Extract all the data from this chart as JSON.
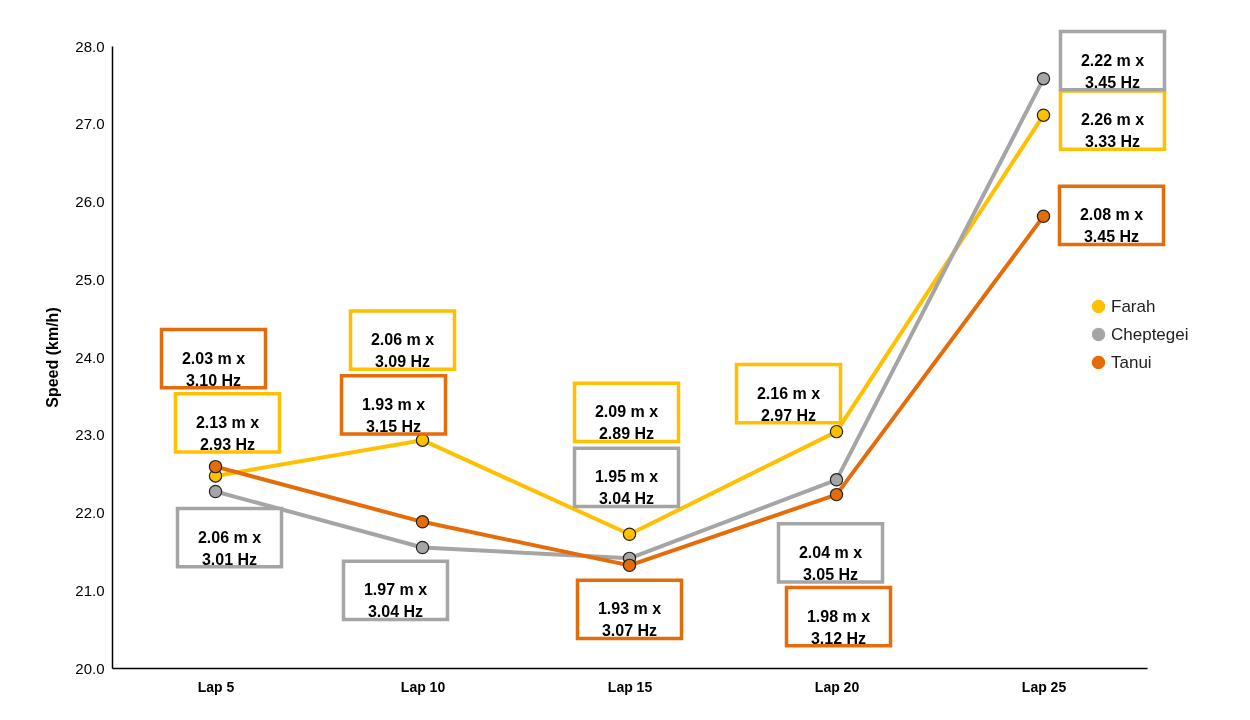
{
  "chart_data": {
    "type": "line",
    "ylabel": "Speed (km/h)",
    "categories": [
      "Lap 5",
      "Lap 10",
      "Lap 15",
      "Lap 20",
      "Lap 25"
    ],
    "ylim": [
      20,
      28
    ],
    "yticks": [
      {
        "value": 20,
        "label": "20.0"
      },
      {
        "value": 21,
        "label": "21.0"
      },
      {
        "value": 22,
        "label": "22.0"
      },
      {
        "value": 23,
        "label": "23.0"
      },
      {
        "value": 24,
        "label": "24.0"
      },
      {
        "value": 25,
        "label": "25.0"
      },
      {
        "value": 26,
        "label": "26.0"
      },
      {
        "value": 27,
        "label": "27.0"
      },
      {
        "value": 28,
        "label": "28.0"
      }
    ],
    "grid": false,
    "legend": "right",
    "marker": "circle",
    "series": [
      {
        "name": "Farah",
        "color": "#ffc000",
        "values": [
          22.47,
          22.93,
          21.72,
          23.04,
          27.11
        ]
      },
      {
        "name": "Cheptegei",
        "color": "#a5a5a5",
        "values": [
          22.27,
          21.55,
          21.41,
          22.42,
          27.58
        ]
      },
      {
        "name": "Tanui",
        "color": "#e46c0a",
        "values": [
          22.59,
          21.88,
          21.32,
          22.23,
          25.81
        ]
      }
    ],
    "annotations": [
      "2.13 m x\n2.93 Hz",
      "2.06 m x\n3.09 Hz",
      "2.09 m x\n2.89 Hz",
      "2.16 m x\n2.97 Hz",
      "2.26 m x\n3.33 Hz",
      "2.06 m x\n3.01 Hz",
      "1.97 m x\n3.04 Hz",
      "1.95 m x\n3.04 Hz",
      "2.04 m x\n3.05 Hz",
      "2.22 m x\n3.45 Hz",
      "2.03 m x\n3.10 Hz",
      "1.93 m x\n3.15 Hz",
      "1.93 m x\n3.07 Hz",
      "1.98 m x\n3.12 Hz",
      "2.08 m x\n3.45 Hz"
    ]
  }
}
